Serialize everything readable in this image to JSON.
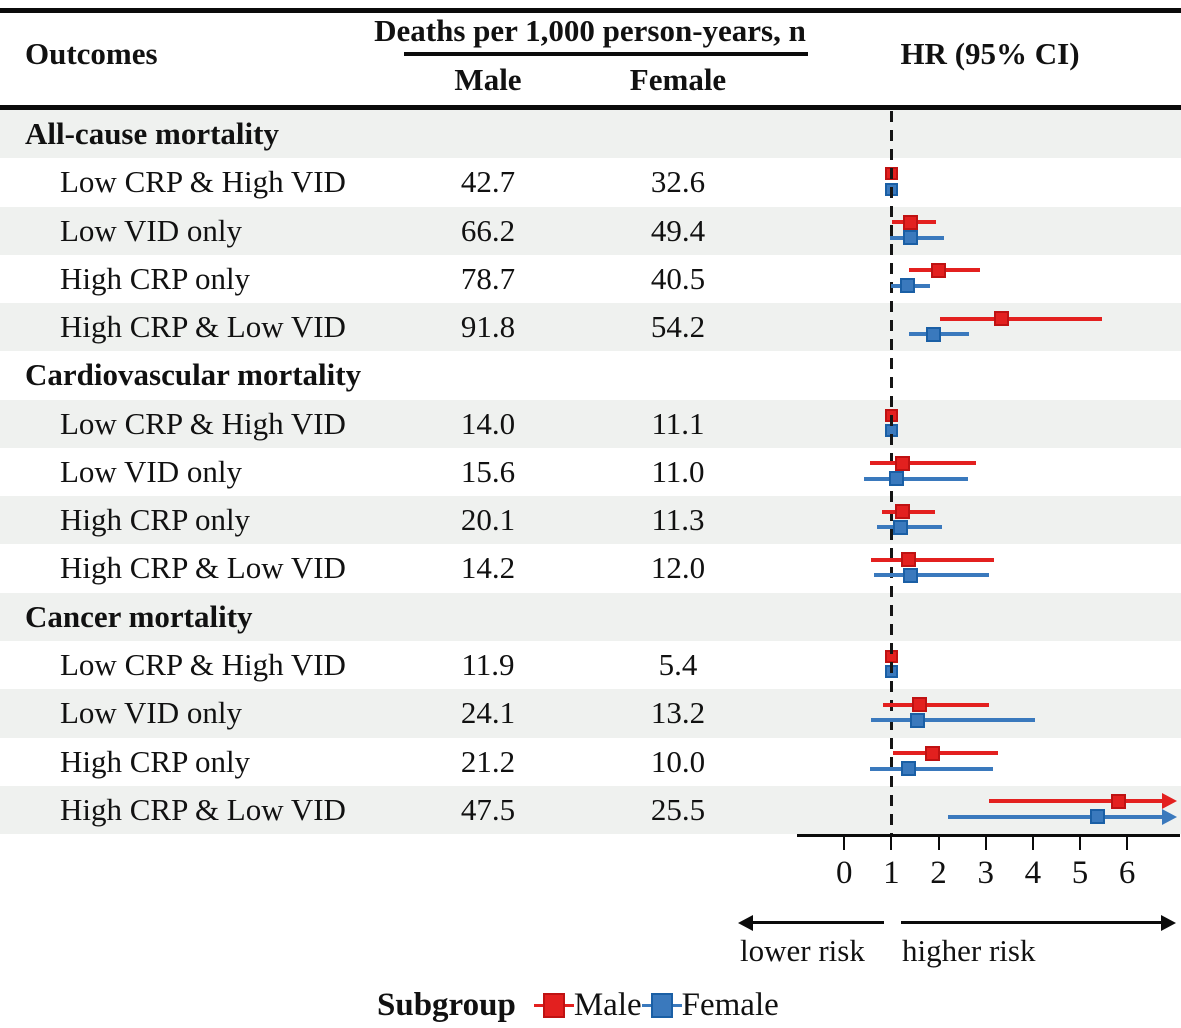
{
  "header": {
    "outcomes_label": "Outcomes",
    "deaths_label": "Deaths per 1,000 person-years, n",
    "male_label": "Male",
    "female_label": "Female",
    "hr_label": "HR (95% CI)"
  },
  "axis": {
    "ticks": [
      "0",
      "1",
      "2",
      "3",
      "4",
      "5",
      "6"
    ],
    "lower_label": "lower risk",
    "higher_label": "higher risk"
  },
  "legend": {
    "title": "Subgroup",
    "male_label": "Male",
    "female_label": "Female"
  },
  "colors": {
    "male_fill": "#e3201f",
    "male_border": "#bf1212",
    "female_fill": "#3a79bd",
    "female_border": "#1a5fa5",
    "row_alt": "#eff1ef",
    "ink": "#0b0b0b"
  },
  "chart_data": {
    "type": "forest",
    "title": "HR (95% CI) by outcome and subgroup, male vs female",
    "x_axis": {
      "ticks": [
        0,
        1,
        2,
        3,
        4,
        5,
        6
      ],
      "reference_line": 1,
      "xlim": [
        -1,
        7.1
      ]
    },
    "legend_position": "bottom",
    "series_names": [
      "Male",
      "Female"
    ],
    "sections": [
      {
        "title": "All-cause mortality",
        "rows": [
          {
            "label": "Low CRP & High VID",
            "male_deaths": "42.7",
            "female_deaths": "32.6",
            "male_hr": {
              "est": 1.0,
              "lo": 0.92,
              "hi": 1.07,
              "ref": true
            },
            "female_hr": {
              "est": 1.0,
              "lo": 0.93,
              "hi": 1.07,
              "ref": true
            }
          },
          {
            "label": "Low VID only",
            "male_deaths": "66.2",
            "female_deaths": "49.4",
            "male_hr": {
              "est": 1.4,
              "lo": 1.02,
              "hi": 1.94
            },
            "female_hr": {
              "est": 1.41,
              "lo": 0.97,
              "hi": 2.12
            }
          },
          {
            "label": "High CRP only",
            "male_deaths": "78.7",
            "female_deaths": "40.5",
            "male_hr": {
              "est": 2.0,
              "lo": 1.38,
              "hi": 2.88
            },
            "female_hr": {
              "est": 1.35,
              "lo": 0.99,
              "hi": 1.82
            }
          },
          {
            "label": "High CRP & Low VID",
            "male_deaths": "91.8",
            "female_deaths": "54.2",
            "male_hr": {
              "est": 3.33,
              "lo": 2.02,
              "hi": 5.46
            },
            "female_hr": {
              "est": 1.9,
              "lo": 1.38,
              "hi": 2.65
            }
          }
        ]
      },
      {
        "title": "Cardiovascular mortality",
        "rows": [
          {
            "label": "Low CRP & High VID",
            "male_deaths": "14.0",
            "female_deaths": "11.1",
            "male_hr": {
              "est": 1.0,
              "lo": 0.93,
              "hi": 1.07,
              "ref": true
            },
            "female_hr": {
              "est": 1.0,
              "lo": 0.93,
              "hi": 1.07,
              "ref": true
            }
          },
          {
            "label": "Low VID only",
            "male_deaths": "15.6",
            "female_deaths": "11.0",
            "male_hr": {
              "est": 1.24,
              "lo": 0.55,
              "hi": 2.8
            },
            "female_hr": {
              "est": 1.1,
              "lo": 0.42,
              "hi": 2.63
            }
          },
          {
            "label": "High CRP only",
            "male_deaths": "20.1",
            "female_deaths": "11.3",
            "male_hr": {
              "est": 1.24,
              "lo": 0.79,
              "hi": 1.93
            },
            "female_hr": {
              "est": 1.2,
              "lo": 0.69,
              "hi": 2.08
            }
          },
          {
            "label": "High CRP & Low VID",
            "male_deaths": "14.2",
            "female_deaths": "12.0",
            "male_hr": {
              "est": 1.37,
              "lo": 0.57,
              "hi": 3.18
            },
            "female_hr": {
              "est": 1.4,
              "lo": 0.62,
              "hi": 3.06
            }
          }
        ]
      },
      {
        "title": "Cancer mortality",
        "rows": [
          {
            "label": "Low CRP & High VID",
            "male_deaths": "11.9",
            "female_deaths": "5.4",
            "male_hr": {
              "est": 1.0,
              "lo": 0.93,
              "hi": 1.07,
              "ref": true
            },
            "female_hr": {
              "est": 1.0,
              "lo": 0.93,
              "hi": 1.07,
              "ref": true
            }
          },
          {
            "label": "Low VID only",
            "male_deaths": "24.1",
            "female_deaths": "13.2",
            "male_hr": {
              "est": 1.59,
              "lo": 0.82,
              "hi": 3.08
            },
            "female_hr": {
              "est": 1.55,
              "lo": 0.57,
              "hi": 4.05
            }
          },
          {
            "label": "High CRP only",
            "male_deaths": "21.2",
            "female_deaths": "10.0",
            "male_hr": {
              "est": 1.88,
              "lo": 1.04,
              "hi": 3.27
            },
            "female_hr": {
              "est": 1.36,
              "lo": 0.55,
              "hi": 3.16
            }
          },
          {
            "label": "High CRP & Low VID",
            "male_deaths": "47.5",
            "female_deaths": "25.5",
            "male_hr": {
              "est": 5.82,
              "lo": 3.07,
              "hi": 6.75,
              "hi_arrow": true
            },
            "female_hr": {
              "est": 5.37,
              "lo": 2.21,
              "hi": 6.75,
              "hi_arrow": true
            }
          }
        ]
      }
    ]
  }
}
